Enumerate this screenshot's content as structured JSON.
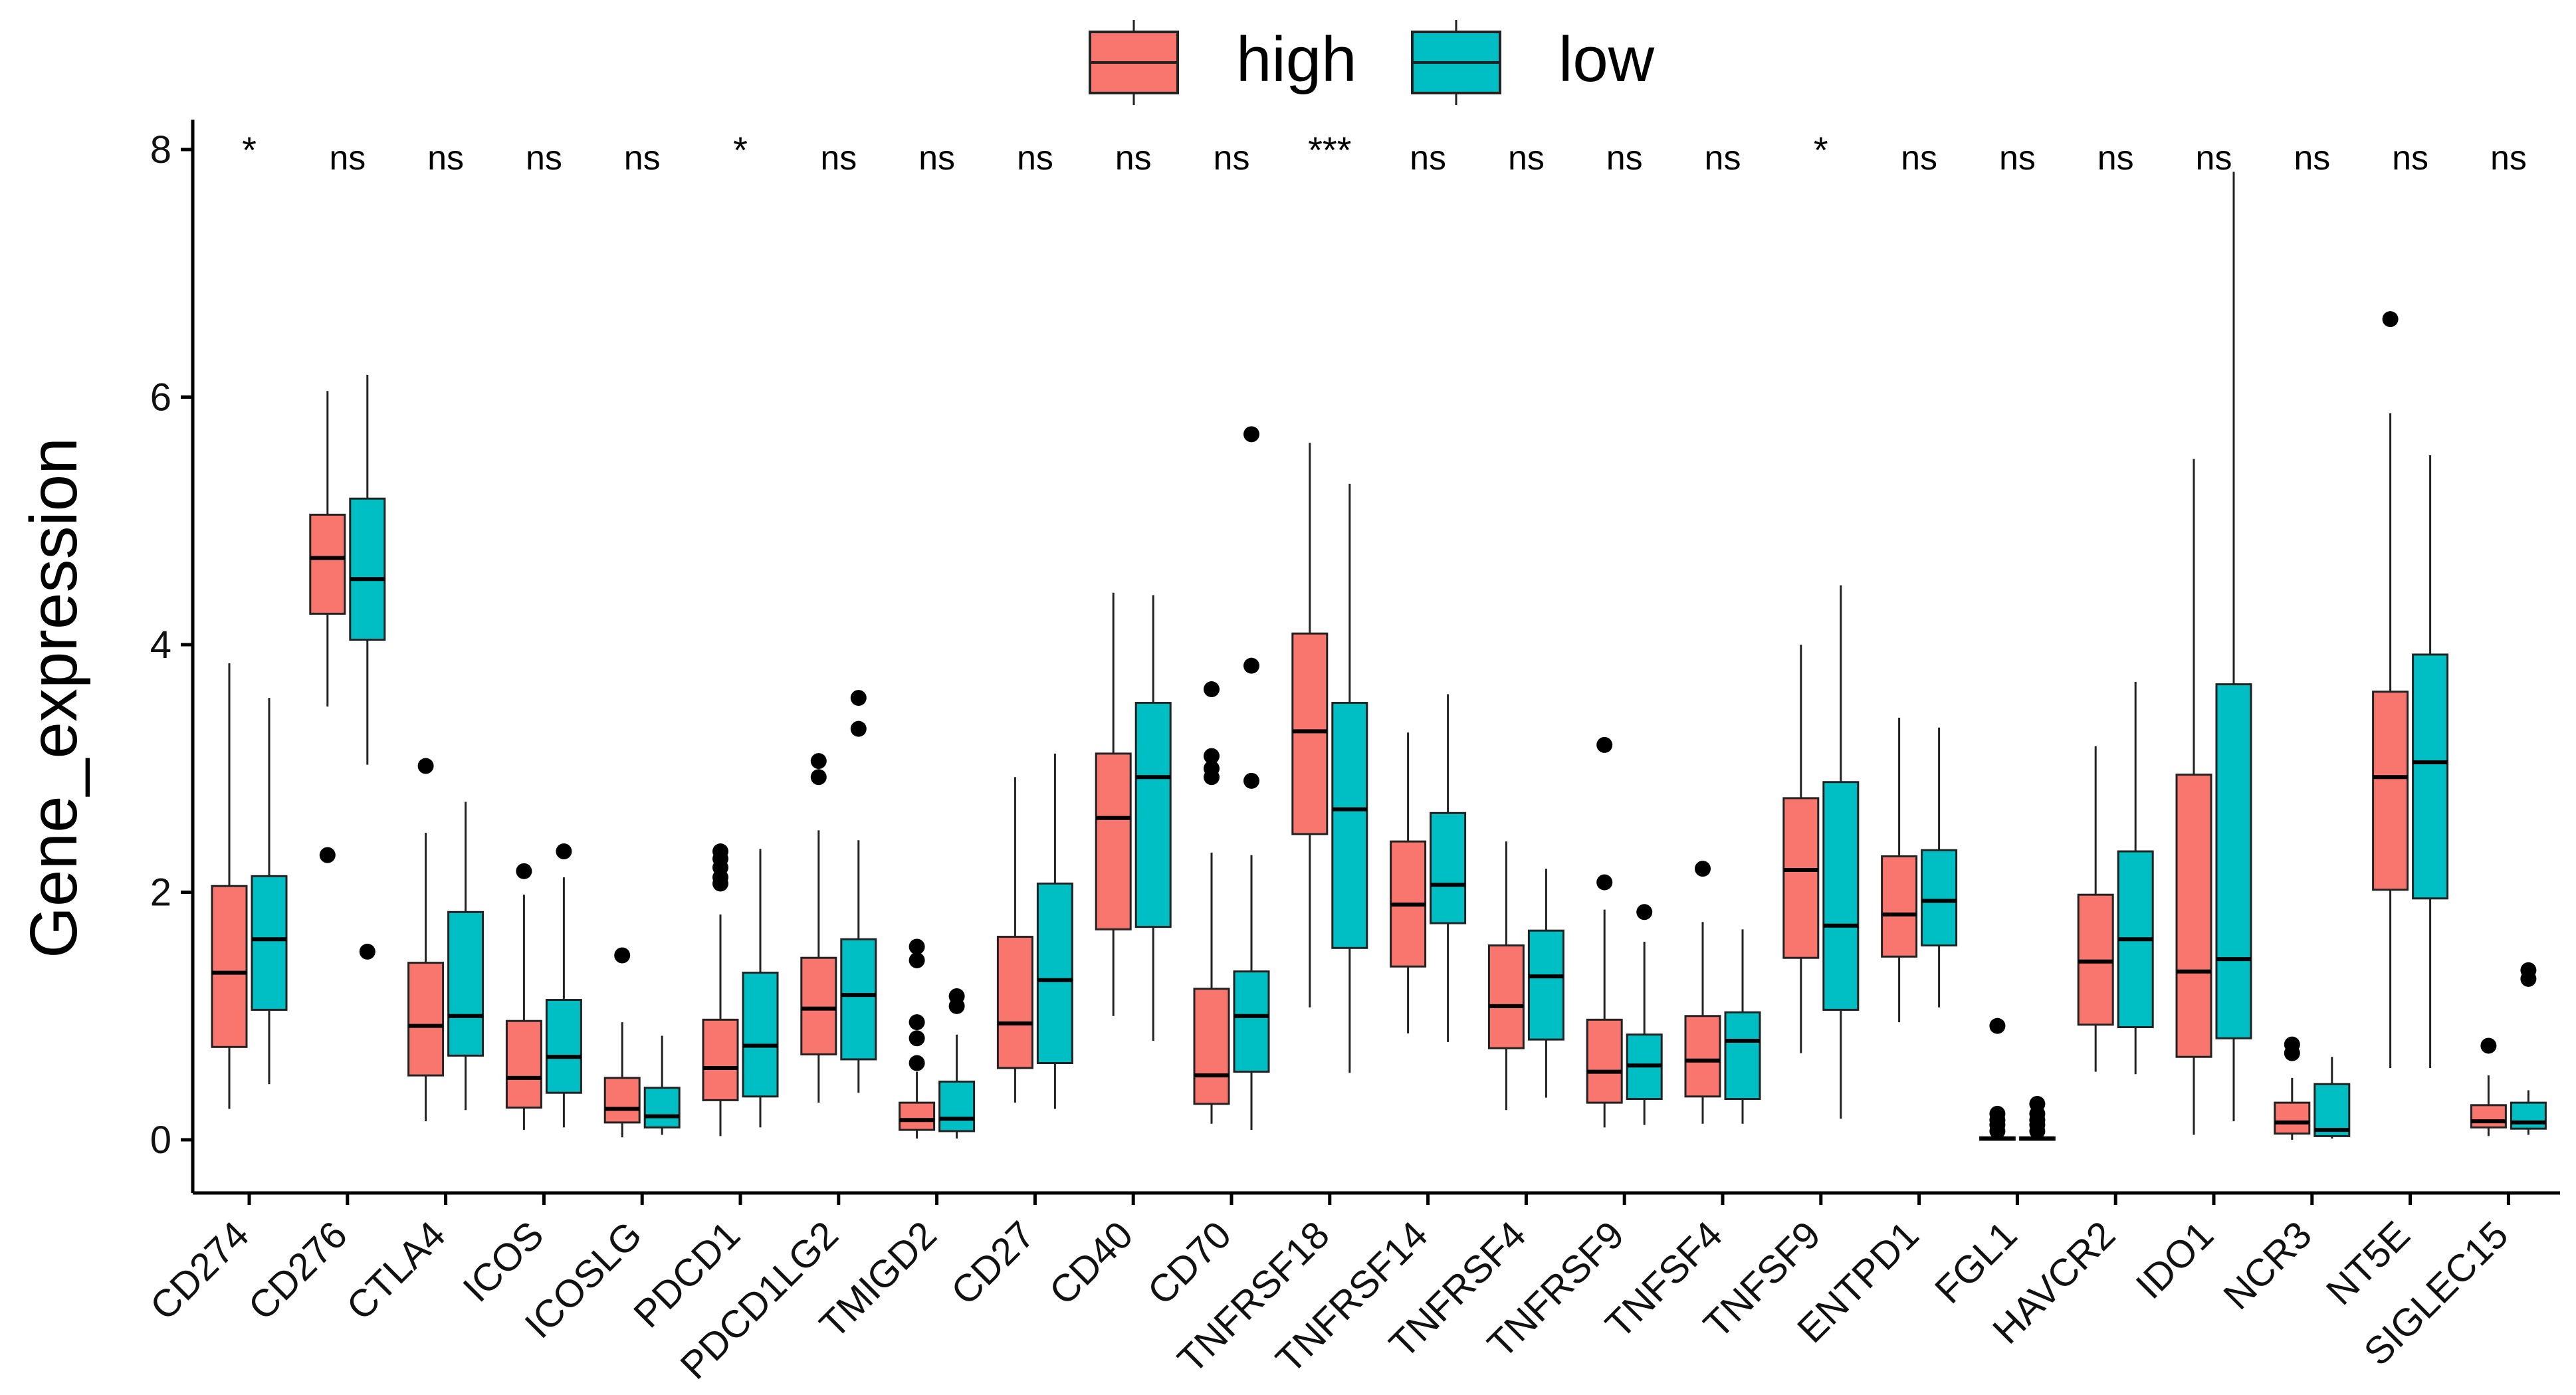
{
  "chart_data": {
    "type": "boxplot",
    "title": "",
    "xlabel": "",
    "ylabel": "Gene_expression",
    "ylim": [
      -0.35,
      8.2
    ],
    "yticks": [
      "0",
      "2",
      "4",
      "6",
      "8"
    ],
    "grid": false,
    "legend": {
      "position": "top-center",
      "entries": [
        {
          "name": "high",
          "color": "#F8766D"
        },
        {
          "name": "low",
          "color": "#00BFC4"
        }
      ]
    },
    "categories": [
      "CD274",
      "CD276",
      "CTLA4",
      "ICOS",
      "ICOSLG",
      "PDCD1",
      "PDCD1LG2",
      "TMIGD2",
      "CD27",
      "CD40",
      "CD70",
      "TNFRSF18",
      "TNFRSF14",
      "TNFRSF4",
      "TNFRSF9",
      "TNFSF4",
      "TNFSF9",
      "ENTPD1",
      "FGL1",
      "HAVCR2",
      "IDO1",
      "NCR3",
      "NT5E",
      "SIGLEC15"
    ],
    "significance": [
      "*",
      "ns",
      "ns",
      "ns",
      "ns",
      "*",
      "ns",
      "ns",
      "ns",
      "ns",
      "ns",
      "***",
      "ns",
      "ns",
      "ns",
      "ns",
      "*",
      "ns",
      "ns",
      "ns",
      "ns",
      "ns",
      "ns",
      "ns"
    ],
    "series": [
      {
        "name": "high",
        "color": "#F8766D",
        "boxes": [
          {
            "min": 0.25,
            "q1": 0.75,
            "median": 1.35,
            "q3": 2.05,
            "max": 3.85,
            "outliers": []
          },
          {
            "min": 3.5,
            "q1": 4.25,
            "median": 4.7,
            "q3": 5.05,
            "max": 6.05,
            "outliers": [
              2.3
            ]
          },
          {
            "min": 0.15,
            "q1": 0.52,
            "median": 0.92,
            "q3": 1.43,
            "max": 2.48,
            "outliers": [
              3.02
            ]
          },
          {
            "min": 0.08,
            "q1": 0.26,
            "median": 0.5,
            "q3": 0.96,
            "max": 1.98,
            "outliers": [
              2.17
            ]
          },
          {
            "min": 0.02,
            "q1": 0.14,
            "median": 0.25,
            "q3": 0.5,
            "max": 0.95,
            "outliers": [
              1.49
            ]
          },
          {
            "min": 0.03,
            "q1": 0.32,
            "median": 0.58,
            "q3": 0.97,
            "max": 1.82,
            "outliers": [
              2.07,
              2.12,
              2.2,
              2.27,
              2.33
            ]
          },
          {
            "min": 0.3,
            "q1": 0.69,
            "median": 1.06,
            "q3": 1.47,
            "max": 2.5,
            "outliers": [
              2.93,
              3.06
            ]
          },
          {
            "min": 0.01,
            "q1": 0.08,
            "median": 0.16,
            "q3": 0.3,
            "max": 0.55,
            "outliers": [
              0.62,
              0.82,
              0.95,
              1.45,
              1.56
            ]
          },
          {
            "min": 0.3,
            "q1": 0.58,
            "median": 0.94,
            "q3": 1.64,
            "max": 2.93,
            "outliers": []
          },
          {
            "min": 1.0,
            "q1": 1.7,
            "median": 2.6,
            "q3": 3.12,
            "max": 4.42,
            "outliers": []
          },
          {
            "min": 0.13,
            "q1": 0.29,
            "median": 0.52,
            "q3": 1.22,
            "max": 2.32,
            "outliers": [
              2.93,
              3.0,
              3.1,
              3.64
            ]
          },
          {
            "min": 1.07,
            "q1": 2.47,
            "median": 3.3,
            "q3": 4.09,
            "max": 5.63,
            "outliers": []
          },
          {
            "min": 0.86,
            "q1": 1.4,
            "median": 1.9,
            "q3": 2.41,
            "max": 3.29,
            "outliers": []
          },
          {
            "min": 0.24,
            "q1": 0.74,
            "median": 1.08,
            "q3": 1.57,
            "max": 2.41,
            "outliers": []
          },
          {
            "min": 0.1,
            "q1": 0.3,
            "median": 0.55,
            "q3": 0.97,
            "max": 1.86,
            "outliers": [
              2.08,
              3.19
            ]
          },
          {
            "min": 0.13,
            "q1": 0.35,
            "median": 0.64,
            "q3": 1.0,
            "max": 1.76,
            "outliers": [
              2.19
            ]
          },
          {
            "min": 0.7,
            "q1": 1.47,
            "median": 2.18,
            "q3": 2.76,
            "max": 4.0,
            "outliers": []
          },
          {
            "min": 0.95,
            "q1": 1.48,
            "median": 1.82,
            "q3": 2.29,
            "max": 3.41,
            "outliers": []
          },
          {
            "min": 0.0,
            "q1": 0.0,
            "median": 0.01,
            "q3": 0.02,
            "max": 0.03,
            "outliers": [
              0.07,
              0.12,
              0.16,
              0.21,
              0.92
            ]
          },
          {
            "min": 0.55,
            "q1": 0.93,
            "median": 1.44,
            "q3": 1.98,
            "max": 3.18,
            "outliers": []
          },
          {
            "min": 0.04,
            "q1": 0.67,
            "median": 1.36,
            "q3": 2.95,
            "max": 5.5,
            "outliers": []
          },
          {
            "min": 0.0,
            "q1": 0.05,
            "median": 0.14,
            "q3": 0.3,
            "max": 0.5,
            "outliers": [
              0.7,
              0.77
            ]
          },
          {
            "min": 0.58,
            "q1": 2.02,
            "median": 2.93,
            "q3": 3.62,
            "max": 5.87,
            "outliers": [
              6.63
            ]
          },
          {
            "min": 0.03,
            "q1": 0.1,
            "median": 0.15,
            "q3": 0.28,
            "max": 0.52,
            "outliers": [
              0.76
            ]
          }
        ]
      },
      {
        "name": "low",
        "color": "#00BFC4",
        "boxes": [
          {
            "min": 0.45,
            "q1": 1.05,
            "median": 1.62,
            "q3": 2.13,
            "max": 3.57,
            "outliers": []
          },
          {
            "min": 3.03,
            "q1": 4.04,
            "median": 4.53,
            "q3": 5.18,
            "max": 6.18,
            "outliers": [
              1.52
            ]
          },
          {
            "min": 0.24,
            "q1": 0.68,
            "median": 1.0,
            "q3": 1.84,
            "max": 2.73,
            "outliers": []
          },
          {
            "min": 0.1,
            "q1": 0.38,
            "median": 0.67,
            "q3": 1.13,
            "max": 2.12,
            "outliers": [
              2.33
            ]
          },
          {
            "min": 0.04,
            "q1": 0.1,
            "median": 0.19,
            "q3": 0.42,
            "max": 0.84,
            "outliers": []
          },
          {
            "min": 0.1,
            "q1": 0.35,
            "median": 0.76,
            "q3": 1.35,
            "max": 2.35,
            "outliers": []
          },
          {
            "min": 0.38,
            "q1": 0.65,
            "median": 1.17,
            "q3": 1.62,
            "max": 2.42,
            "outliers": [
              3.32,
              3.57
            ]
          },
          {
            "min": 0.01,
            "q1": 0.07,
            "median": 0.17,
            "q3": 0.47,
            "max": 0.85,
            "outliers": [
              1.08,
              1.16
            ]
          },
          {
            "min": 0.25,
            "q1": 0.62,
            "median": 1.29,
            "q3": 2.07,
            "max": 3.12,
            "outliers": []
          },
          {
            "min": 0.8,
            "q1": 1.72,
            "median": 2.93,
            "q3": 3.53,
            "max": 4.4,
            "outliers": []
          },
          {
            "min": 0.08,
            "q1": 0.55,
            "median": 1.0,
            "q3": 1.36,
            "max": 2.3,
            "outliers": [
              2.9,
              3.83,
              5.7
            ]
          },
          {
            "min": 0.54,
            "q1": 1.55,
            "median": 2.67,
            "q3": 3.53,
            "max": 5.3,
            "outliers": []
          },
          {
            "min": 0.79,
            "q1": 1.75,
            "median": 2.06,
            "q3": 2.64,
            "max": 3.6,
            "outliers": []
          },
          {
            "min": 0.34,
            "q1": 0.81,
            "median": 1.32,
            "q3": 1.69,
            "max": 2.19,
            "outliers": []
          },
          {
            "min": 0.12,
            "q1": 0.33,
            "median": 0.6,
            "q3": 0.85,
            "max": 1.6,
            "outliers": [
              1.84
            ]
          },
          {
            "min": 0.13,
            "q1": 0.33,
            "median": 0.8,
            "q3": 1.03,
            "max": 1.7,
            "outliers": []
          },
          {
            "min": 0.17,
            "q1": 1.05,
            "median": 1.73,
            "q3": 2.89,
            "max": 4.48,
            "outliers": []
          },
          {
            "min": 1.07,
            "q1": 1.57,
            "median": 1.93,
            "q3": 2.34,
            "max": 3.33,
            "outliers": []
          },
          {
            "min": 0.0,
            "q1": 0.0,
            "median": 0.01,
            "q3": 0.02,
            "max": 0.03,
            "outliers": [
              0.07,
              0.12,
              0.16,
              0.21,
              0.29
            ]
          },
          {
            "min": 0.53,
            "q1": 0.91,
            "median": 1.62,
            "q3": 2.33,
            "max": 3.7,
            "outliers": []
          },
          {
            "min": 0.15,
            "q1": 0.82,
            "median": 1.46,
            "q3": 3.68,
            "max": 7.82,
            "outliers": []
          },
          {
            "min": 0.01,
            "q1": 0.03,
            "median": 0.08,
            "q3": 0.45,
            "max": 0.67,
            "outliers": []
          },
          {
            "min": 0.58,
            "q1": 1.95,
            "median": 3.05,
            "q3": 3.92,
            "max": 5.53,
            "outliers": []
          },
          {
            "min": 0.04,
            "q1": 0.09,
            "median": 0.14,
            "q3": 0.3,
            "max": 0.4,
            "outliers": [
              1.3,
              1.37
            ]
          }
        ]
      }
    ]
  }
}
